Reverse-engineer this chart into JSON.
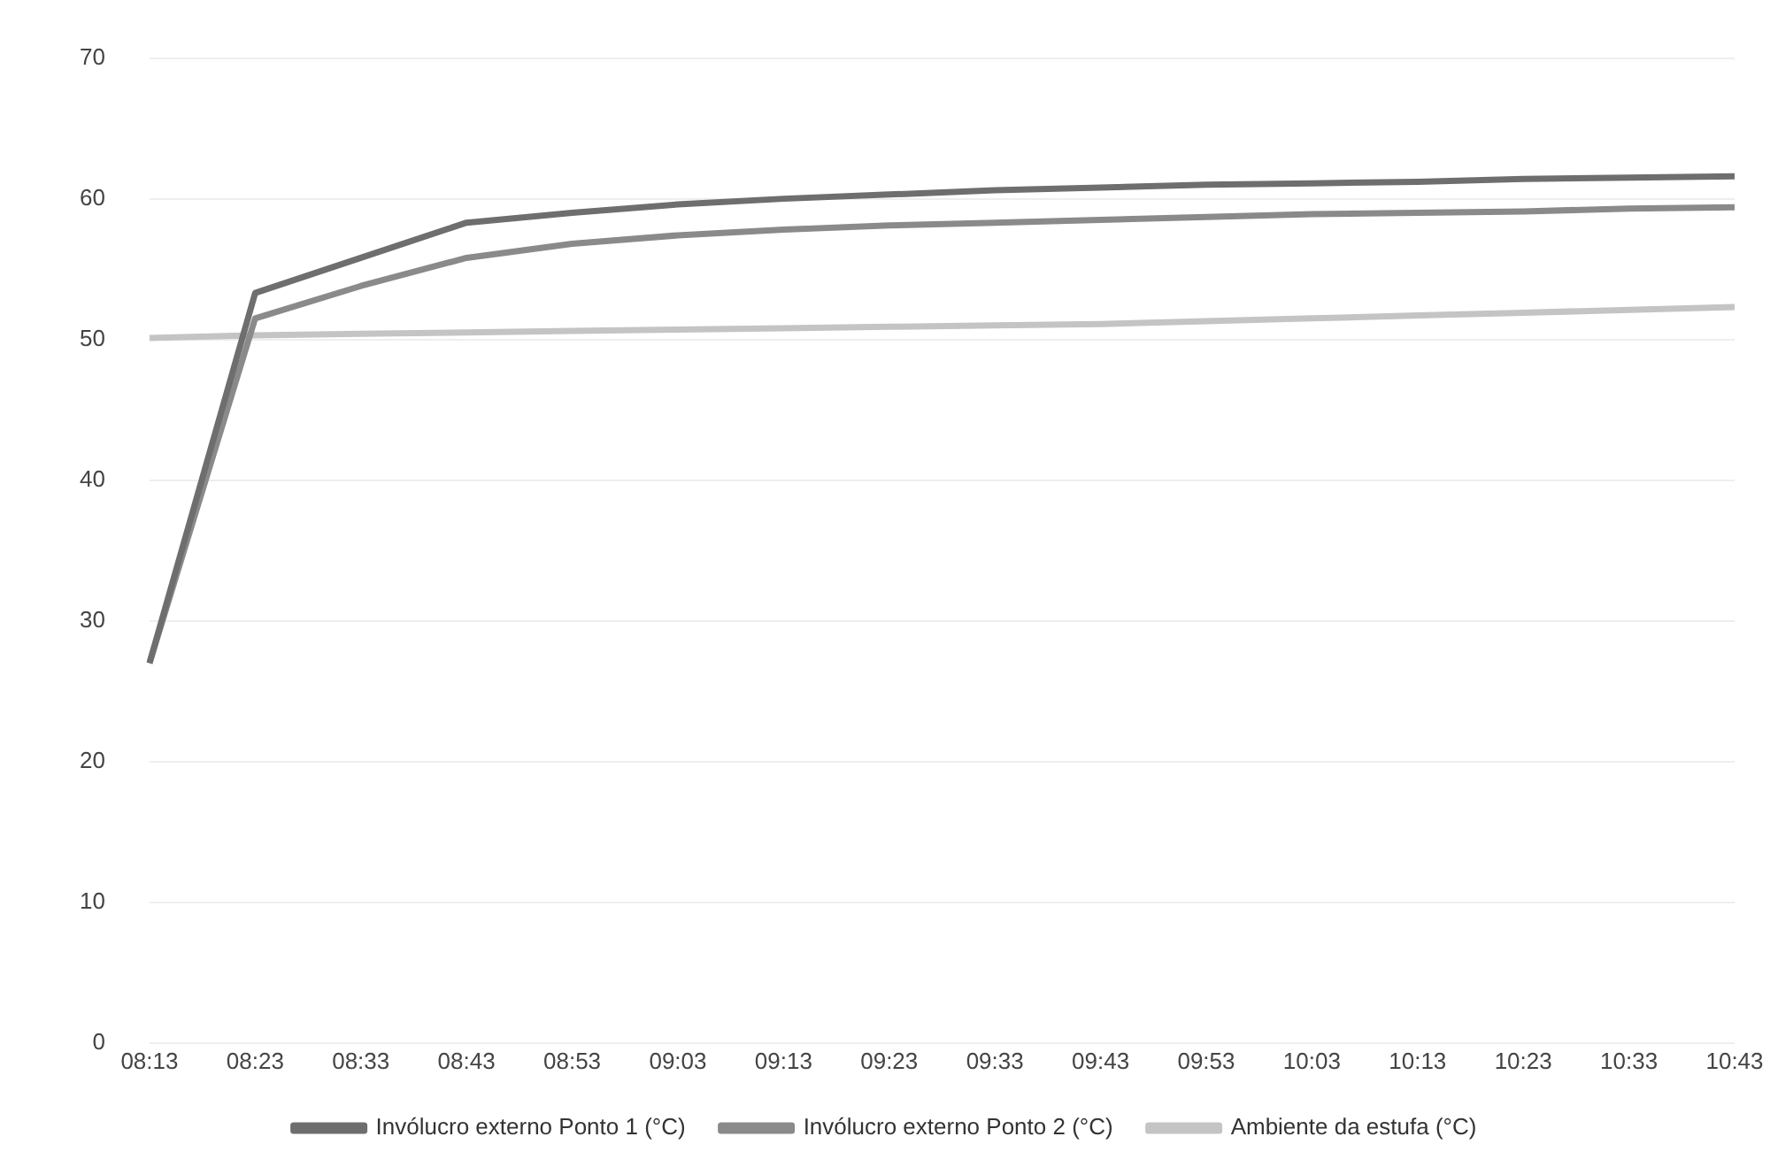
{
  "chart_data": {
    "type": "line",
    "categories": [
      "08:13",
      "08:23",
      "08:33",
      "08:43",
      "08:53",
      "09:03",
      "09:13",
      "09:23",
      "09:33",
      "09:43",
      "09:53",
      "10:03",
      "10:13",
      "10:23",
      "10:33",
      "10:43"
    ],
    "series": [
      {
        "name": "Invólucro externo Ponto 1 (°C)",
        "color": "#6e6e6e",
        "values": [
          27,
          53.3,
          55.8,
          58.3,
          59,
          59.6,
          60,
          60.3,
          60.6,
          60.8,
          61,
          61.1,
          61.2,
          61.4,
          61.5,
          61.6
        ]
      },
      {
        "name": "Invólucro externo Ponto 2 (°C)",
        "color": "#8a8a8a",
        "values": [
          27,
          51.5,
          53.8,
          55.8,
          56.8,
          57.4,
          57.8,
          58.1,
          58.3,
          58.5,
          58.7,
          58.9,
          59,
          59.1,
          59.3,
          59.4
        ]
      },
      {
        "name": "Ambiente da estufa (°C)",
        "color": "#c4c4c4",
        "values": [
          50.1,
          50.3,
          50.4,
          50.5,
          50.6,
          50.7,
          50.8,
          50.9,
          51,
          51.1,
          51.3,
          51.5,
          51.7,
          51.9,
          52.1,
          52.3
        ]
      }
    ],
    "ylim": [
      0,
      70
    ],
    "yticks": [
      0,
      10,
      20,
      30,
      40,
      50,
      60,
      70
    ],
    "grid": "y",
    "legend": "bottom",
    "marker": "none",
    "line_style": "solid"
  }
}
